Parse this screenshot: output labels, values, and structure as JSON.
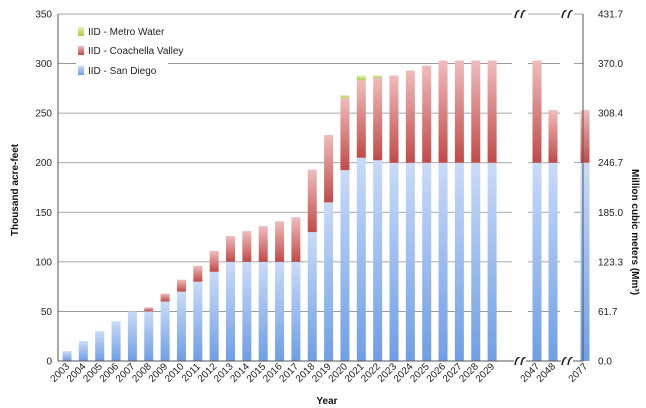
{
  "chart_data": {
    "type": "bar",
    "stacked": true,
    "title": "",
    "xlabel": "Year",
    "ylabel": "Thousand acre-feet",
    "ylabel_right": "Million cubic meters (Mm³)",
    "ylim": [
      0,
      350
    ],
    "y_ticks": [
      0,
      50,
      100,
      150,
      200,
      250,
      300,
      350
    ],
    "y_ticks_right": [
      "0.0",
      "61.7",
      "123.3",
      "185.0",
      "246.7",
      "308.4",
      "370.0",
      "431.7"
    ],
    "grid": true,
    "legend_position": "top-left",
    "axis_break": "between 2029 and 2047, and between 2048 and 2077",
    "categories": [
      "2003",
      "2004",
      "2005",
      "2006",
      "2007",
      "2008",
      "2009",
      "2010",
      "2011",
      "2012",
      "2013",
      "2014",
      "2015",
      "2016",
      "2017",
      "2018",
      "2019",
      "2020",
      "2021",
      "2022",
      "2023",
      "2024",
      "2025",
      "2026",
      "2027",
      "2028",
      "2029",
      "2047",
      "2048",
      "2077"
    ],
    "series": [
      {
        "name": "IID - San Diego",
        "color": "#7aa6e8",
        "values": [
          10,
          20,
          30,
          40,
          50,
          50,
          60,
          70,
          80,
          90,
          100,
          100,
          100,
          100,
          100,
          130,
          160,
          192.5,
          205,
          202.5,
          200,
          200,
          200,
          200,
          200,
          200,
          200,
          200,
          200,
          200
        ]
      },
      {
        "name": "IID - Coachella Valley",
        "color": "#c65452",
        "values": [
          0,
          0,
          0,
          0,
          0,
          4,
          8,
          12,
          16,
          21,
          26,
          31,
          36,
          41,
          45,
          63,
          68,
          73,
          78,
          83,
          88,
          93,
          98,
          103,
          103,
          103,
          103,
          103,
          53,
          53
        ]
      },
      {
        "name": "IID - Metro Water",
        "color": "#b5d45a",
        "values": [
          0,
          0,
          0,
          0,
          0,
          0,
          0,
          0,
          0,
          0,
          0,
          0,
          0,
          0,
          0,
          0,
          0,
          2.5,
          5,
          2.5,
          0,
          0,
          0,
          0,
          0,
          0,
          0,
          0,
          0,
          0
        ]
      }
    ]
  }
}
